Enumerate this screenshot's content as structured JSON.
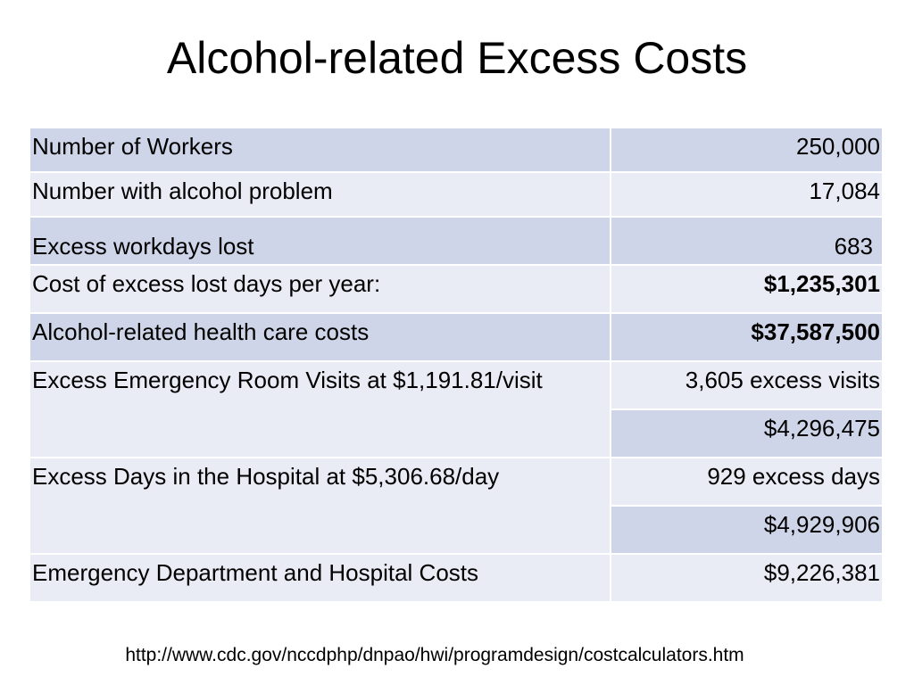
{
  "slide": {
    "title": "Alcohol-related Excess Costs",
    "source_url": "http://www.cdc.gov/nccdphp/dnpao/hwi/programdesign/costcalculators.htm"
  },
  "table": {
    "rows": [
      {
        "label": "Number of Workers",
        "value": "250,000"
      },
      {
        "label": "Number with alcohol problem",
        "value": "17,084"
      },
      {
        "label": "Excess workdays lost",
        "value": "683"
      },
      {
        "label": "Cost of excess lost days per year:",
        "value": "$1,235,301"
      },
      {
        "label": "Alcohol-related health care costs",
        "value": "$37,587,500"
      },
      {
        "label": "Excess Emergency Room Visits at $1,191.81/visit",
        "value": "3,605 excess visits",
        "value2": "$4,296,475"
      },
      {
        "label": "Excess Days in the Hospital at $5,306.68/day",
        "value": "929 excess days",
        "value2": "$4,929,906"
      },
      {
        "label": "Emergency Department and Hospital Costs",
        "value": "$9,226,381"
      }
    ]
  }
}
